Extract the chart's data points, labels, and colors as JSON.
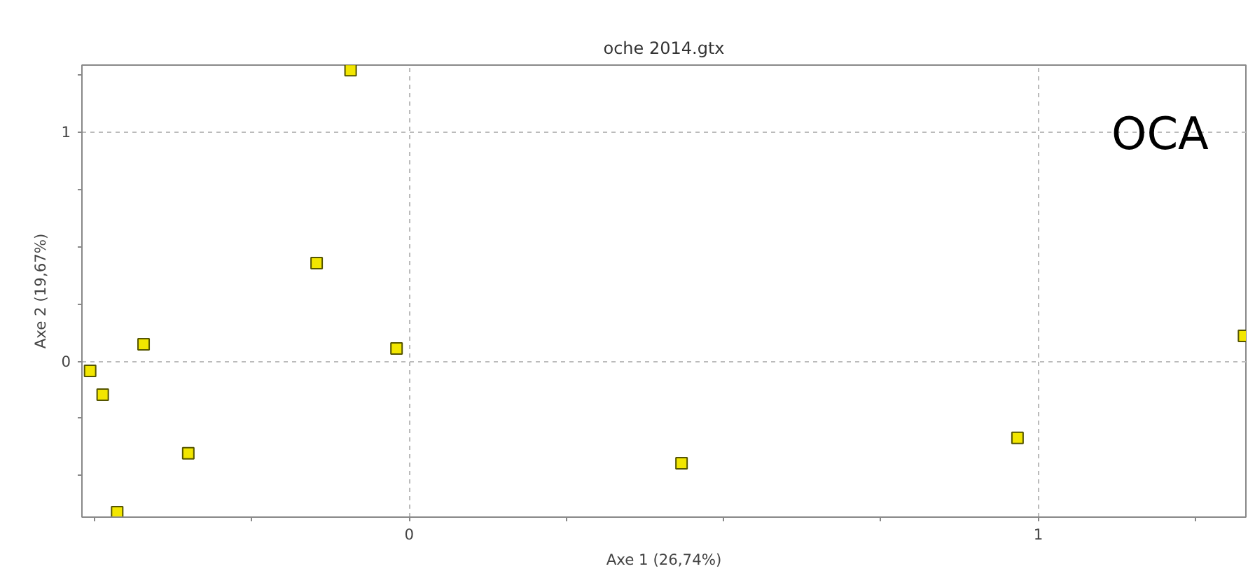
{
  "chart_data": {
    "type": "scatter",
    "title": "oche 2014.gtx",
    "xlabel": "Axe 1 (26,74%)",
    "ylabel": "Axe 2 (19,67%)",
    "x": [
      -0.507,
      -0.487,
      -0.422,
      -0.351,
      -0.464,
      -0.147,
      -0.093,
      -0.02,
      0.433,
      0.967,
      1.327
    ],
    "series": [
      {
        "color": "#f2e600",
        "values": [
          -0.043,
          -0.146,
          0.073,
          -0.402,
          -0.659,
          0.427,
          1.268,
          0.055,
          -0.445,
          -0.335,
          0.11
        ]
      }
    ],
    "xlim": [
      -0.52,
      1.33
    ],
    "ylim": [
      -0.68,
      1.29
    ],
    "xticks": [
      {
        "value": -0.5,
        "label": null
      },
      {
        "value": -0.25,
        "label": null
      },
      0,
      {
        "value": 0.25,
        "label": null
      },
      {
        "value": 0.5,
        "label": null
      },
      {
        "value": 0.75,
        "label": null
      },
      1,
      {
        "value": 1.25,
        "label": null
      }
    ],
    "yticks": [
      {
        "value": -0.5,
        "label": null
      },
      {
        "value": -0.25,
        "label": null
      },
      0,
      {
        "value": 0.25,
        "label": null
      },
      {
        "value": 0.5,
        "label": null
      },
      {
        "value": 0.75,
        "label": null
      },
      1,
      {
        "value": 1.25,
        "label": null
      }
    ],
    "grid": true,
    "marker": "square",
    "annotations": [
      "OCA"
    ]
  }
}
